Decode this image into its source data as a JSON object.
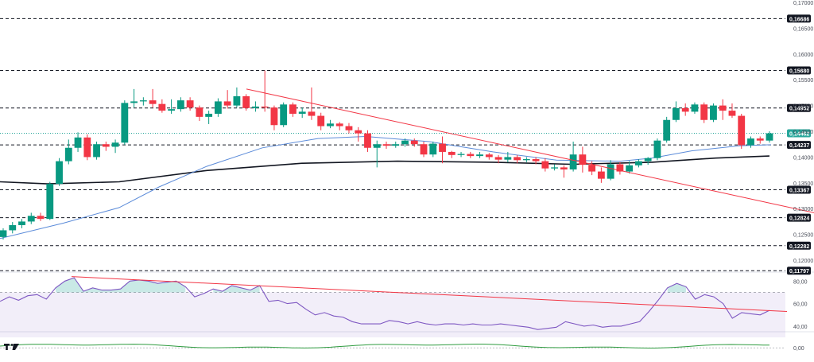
{
  "chart_data": {
    "type": "candlestick",
    "main_panel": {
      "y_axis_ticks": [
        "0,17000",
        "0,16500",
        "0,16000",
        "0,15500",
        "0,15000",
        "0,14500",
        "0,14000",
        "0,13500",
        "0,13000",
        "0,12500",
        "0,12000"
      ],
      "ylim": [
        0.118,
        0.17
      ],
      "levels": [
        {
          "value": 0.16686,
          "label": "0,16686"
        },
        {
          "value": 0.1568,
          "label": "0,15680"
        },
        {
          "value": 0.14952,
          "label": "0,14952"
        },
        {
          "value": 0.14237,
          "label": "0,14237"
        },
        {
          "value": 0.13367,
          "label": "0,13367"
        },
        {
          "value": 0.12824,
          "label": "0,12824"
        },
        {
          "value": 0.12282,
          "label": "0,12282"
        },
        {
          "value": 0.11797,
          "label": "0,11797"
        }
      ],
      "last_price": {
        "value": 0.14462,
        "label": "0,14462"
      },
      "candles": [
        [
          0.1245,
          0.1258,
          0.124,
          0.1262
        ],
        [
          0.1258,
          0.1268,
          0.1252,
          0.1274
        ],
        [
          0.1268,
          0.1275,
          0.1262,
          0.128
        ],
        [
          0.1275,
          0.1286,
          0.127,
          0.1292
        ],
        [
          0.1286,
          0.128,
          0.1276,
          0.1292
        ],
        [
          0.128,
          0.1348,
          0.1278,
          0.1352
        ],
        [
          0.1348,
          0.1392,
          0.1344,
          0.1398
        ],
        [
          0.1392,
          0.1418,
          0.1386,
          0.1434
        ],
        [
          0.1418,
          0.1438,
          0.141,
          0.1448
        ],
        [
          0.1438,
          0.14,
          0.1394,
          0.1444
        ],
        [
          0.14,
          0.1425,
          0.1395,
          0.143
        ],
        [
          0.1425,
          0.142,
          0.1412,
          0.143
        ],
        [
          0.142,
          0.1428,
          0.1408,
          0.1434
        ],
        [
          0.1428,
          0.1505,
          0.1424,
          0.151
        ],
        [
          0.1505,
          0.1508,
          0.1496,
          0.1532
        ],
        [
          0.1508,
          0.151,
          0.15,
          0.1516
        ],
        [
          0.151,
          0.1503,
          0.1496,
          0.1532
        ],
        [
          0.1503,
          0.149,
          0.1486,
          0.1512
        ],
        [
          0.149,
          0.1493,
          0.1484,
          0.1512
        ],
        [
          0.1493,
          0.151,
          0.1488,
          0.1516
        ],
        [
          0.151,
          0.1496,
          0.149,
          0.1516
        ],
        [
          0.1496,
          0.1478,
          0.147,
          0.15
        ],
        [
          0.1478,
          0.1484,
          0.1464,
          0.149
        ],
        [
          0.1484,
          0.1508,
          0.1478,
          0.1514
        ],
        [
          0.1508,
          0.15,
          0.1494,
          0.153
        ],
        [
          0.15,
          0.1518,
          0.1496,
          0.1535
        ],
        [
          0.1518,
          0.1495,
          0.149,
          0.1522
        ],
        [
          0.1495,
          0.1498,
          0.1488,
          0.1508
        ],
        [
          0.1498,
          0.1496,
          0.1488,
          0.1568
        ],
        [
          0.1496,
          0.1462,
          0.1452,
          0.15
        ],
        [
          0.1462,
          0.1502,
          0.1458,
          0.1506
        ],
        [
          0.1502,
          0.1484,
          0.1478,
          0.1506
        ],
        [
          0.1484,
          0.1488,
          0.1476,
          0.1496
        ],
        [
          0.1488,
          0.148,
          0.1472,
          0.1535
        ],
        [
          0.148,
          0.146,
          0.1452,
          0.1486
        ],
        [
          0.146,
          0.1465,
          0.1456,
          0.1472
        ],
        [
          0.1465,
          0.146,
          0.1452,
          0.1468
        ],
        [
          0.146,
          0.1452,
          0.1446,
          0.1466
        ],
        [
          0.1452,
          0.1446,
          0.143,
          0.1458
        ],
        [
          0.1446,
          0.1418,
          0.141,
          0.1452
        ],
        [
          0.1418,
          0.1425,
          0.138,
          0.1432
        ],
        [
          0.1425,
          0.1422,
          0.1416,
          0.143
        ],
        [
          0.1422,
          0.1425,
          0.1418,
          0.143
        ],
        [
          0.1425,
          0.1432,
          0.142,
          0.1436
        ],
        [
          0.1432,
          0.1425,
          0.142,
          0.1436
        ],
        [
          0.1425,
          0.1405,
          0.14,
          0.143
        ],
        [
          0.1405,
          0.1426,
          0.14,
          0.143
        ],
        [
          0.1426,
          0.141,
          0.1388,
          0.144
        ],
        [
          0.141,
          0.1404,
          0.1398,
          0.1412
        ],
        [
          0.1404,
          0.1406,
          0.14,
          0.141
        ],
        [
          0.1406,
          0.1402,
          0.1398,
          0.141
        ],
        [
          0.1402,
          0.1405,
          0.1398,
          0.141
        ],
        [
          0.1405,
          0.14,
          0.1395,
          0.1408
        ],
        [
          0.14,
          0.1395,
          0.1388,
          0.1404
        ],
        [
          0.1395,
          0.14,
          0.139,
          0.141
        ],
        [
          0.14,
          0.1394,
          0.1388,
          0.1404
        ],
        [
          0.1394,
          0.1396,
          0.139,
          0.14
        ],
        [
          0.1396,
          0.1392,
          0.1386,
          0.14
        ],
        [
          0.1392,
          0.1378,
          0.1372,
          0.1398
        ],
        [
          0.1378,
          0.138,
          0.1374,
          0.1386
        ],
        [
          0.138,
          0.1376,
          0.136,
          0.1384
        ],
        [
          0.1376,
          0.1405,
          0.1372,
          0.143
        ],
        [
          0.1405,
          0.1385,
          0.137,
          0.142
        ],
        [
          0.1385,
          0.1372,
          0.1365,
          0.1392
        ],
        [
          0.1372,
          0.1358,
          0.135,
          0.138
        ],
        [
          0.1358,
          0.1386,
          0.1355,
          0.1394
        ],
        [
          0.1386,
          0.1372,
          0.1366,
          0.139
        ],
        [
          0.1372,
          0.1384,
          0.1368,
          0.1392
        ],
        [
          0.1384,
          0.1392,
          0.138,
          0.1396
        ],
        [
          0.1392,
          0.1398,
          0.1385,
          0.14
        ],
        [
          0.1398,
          0.1432,
          0.1394,
          0.1436
        ],
        [
          0.1432,
          0.1472,
          0.1428,
          0.1478
        ],
        [
          0.1472,
          0.1495,
          0.1468,
          0.1508
        ],
        [
          0.1495,
          0.1488,
          0.148,
          0.1504
        ],
        [
          0.1488,
          0.1502,
          0.1484,
          0.1506
        ],
        [
          0.1502,
          0.1472,
          0.1466,
          0.1506
        ],
        [
          0.1472,
          0.15,
          0.1468,
          0.1504
        ],
        [
          0.15,
          0.149,
          0.1472,
          0.1512
        ],
        [
          0.149,
          0.148,
          0.1476,
          0.1504
        ],
        [
          0.148,
          0.1423,
          0.1416,
          0.1484
        ],
        [
          0.1423,
          0.1436,
          0.1418,
          0.144
        ],
        [
          0.1436,
          0.1432,
          0.1426,
          0.144
        ],
        [
          0.1432,
          0.1446,
          0.1428,
          0.145
        ]
      ],
      "ma_fast": [
        [
          0,
          0.1242
        ],
        [
          80,
          0.1272
        ],
        [
          150,
          0.1302
        ],
        [
          200,
          0.1342
        ],
        [
          260,
          0.1382
        ],
        [
          330,
          0.1418
        ],
        [
          400,
          0.1436
        ],
        [
          460,
          0.144
        ],
        [
          540,
          0.143
        ],
        [
          620,
          0.141
        ],
        [
          700,
          0.1394
        ],
        [
          780,
          0.1392
        ],
        [
          820,
          0.1398
        ],
        [
          870,
          0.1412
        ],
        [
          930,
          0.1422
        ],
        [
          970,
          0.1424
        ]
      ],
      "ma_slow": [
        [
          0,
          0.1352
        ],
        [
          60,
          0.1348
        ],
        [
          150,
          0.1352
        ],
        [
          260,
          0.1374
        ],
        [
          380,
          0.1388
        ],
        [
          500,
          0.1392
        ],
        [
          620,
          0.139
        ],
        [
          720,
          0.1386
        ],
        [
          820,
          0.139
        ],
        [
          900,
          0.1398
        ],
        [
          968,
          0.1402
        ]
      ],
      "trendline": [
        [
          310,
          0.1532
        ],
        [
          1024,
          0.1292
        ]
      ]
    },
    "rsi_panel": {
      "y_axis_ticks": [
        "80,00",
        "60,00",
        "40,00"
      ],
      "ylim": [
        35,
        88
      ],
      "band": [
        30,
        70
      ],
      "values": [
        62,
        66,
        63,
        67,
        68,
        64,
        74,
        80,
        83,
        71,
        74,
        72,
        72,
        73,
        80,
        81,
        80,
        78,
        79,
        80,
        75,
        66,
        69,
        73,
        71,
        76,
        74,
        72,
        76,
        62,
        63,
        60,
        61,
        55,
        50,
        52,
        49,
        48,
        44,
        42,
        42,
        42,
        45,
        44,
        42,
        44,
        42,
        41,
        42,
        42,
        41,
        42,
        41,
        41,
        42,
        41,
        40,
        39,
        37,
        38,
        39,
        44,
        42,
        40,
        41,
        39,
        40,
        40,
        42,
        44,
        53,
        63,
        74,
        78,
        75,
        64,
        68,
        66,
        60,
        47,
        52,
        51,
        50,
        54
      ],
      "trendline": [
        [
          90,
          84
        ],
        [
          990,
          53
        ]
      ]
    },
    "bottom_panel": {
      "y_axis_ticks": [
        "0,00"
      ],
      "ylim": [
        -2,
        3
      ]
    }
  }
}
